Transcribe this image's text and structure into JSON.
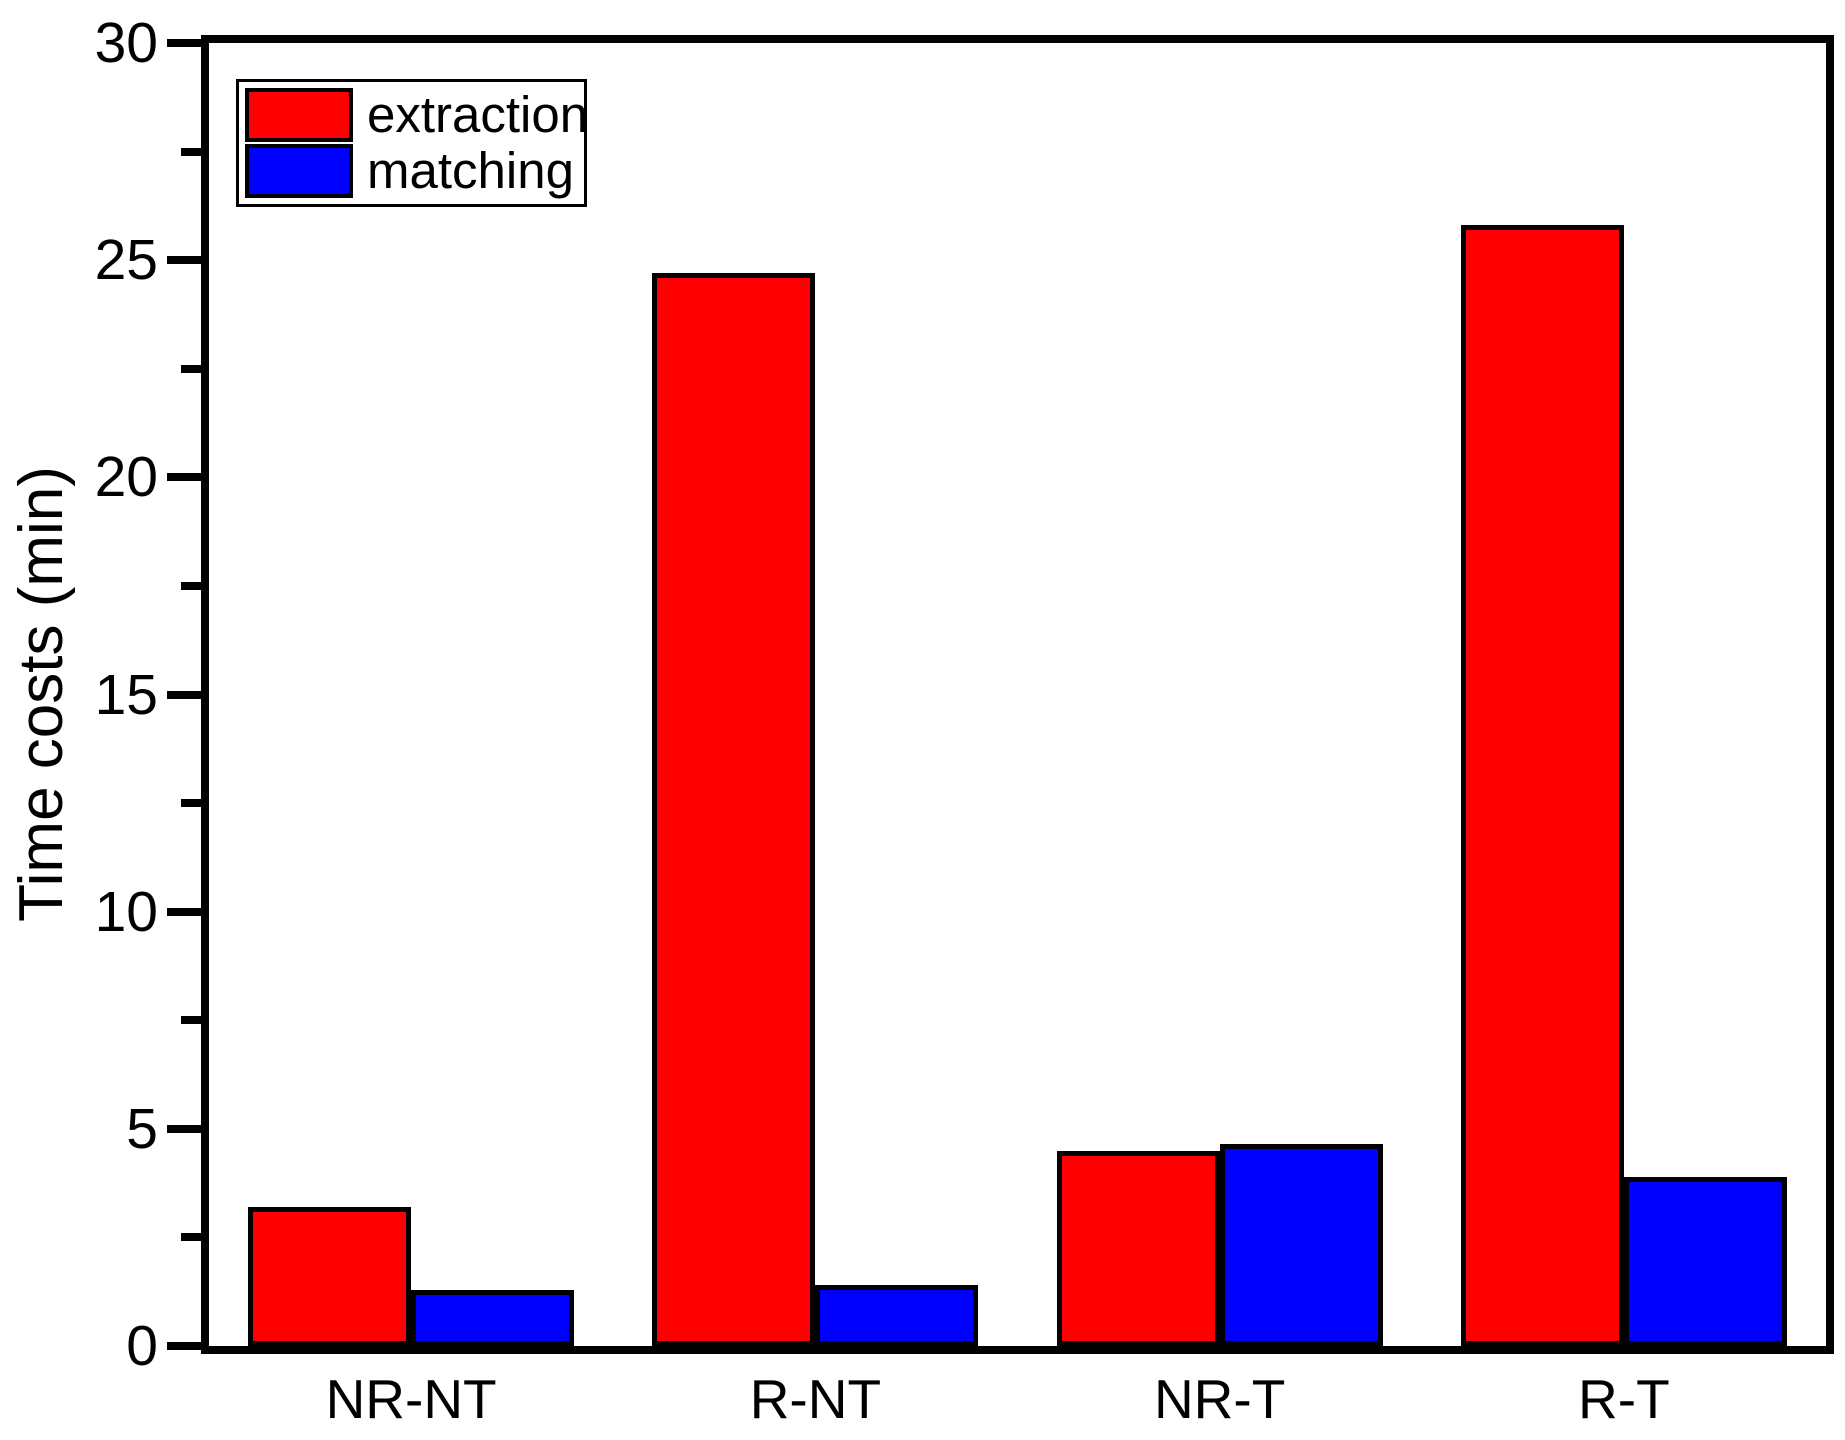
{
  "chart_data": {
    "type": "bar",
    "title": "",
    "xlabel": "",
    "ylabel": "Time costs (min)",
    "categories": [
      "NR-NT",
      "R-NT",
      "NR-T",
      "R-T"
    ],
    "series": [
      {
        "name": "extraction",
        "color": "#ff0000",
        "values": [
          3.2,
          24.7,
          4.5,
          25.8
        ]
      },
      {
        "name": "matching",
        "color": "#0000ff",
        "values": [
          1.3,
          1.4,
          4.65,
          3.9
        ]
      }
    ],
    "ylim": [
      0,
      30
    ],
    "y_major_ticks": [
      0,
      5,
      10,
      15,
      20,
      25,
      30
    ],
    "y_minor_tick_step": 2.5,
    "grid": false,
    "legend_position": "top-left",
    "bar_outline_color": "#000000",
    "axis_color": "#000000",
    "background_color": "#ffffff"
  }
}
